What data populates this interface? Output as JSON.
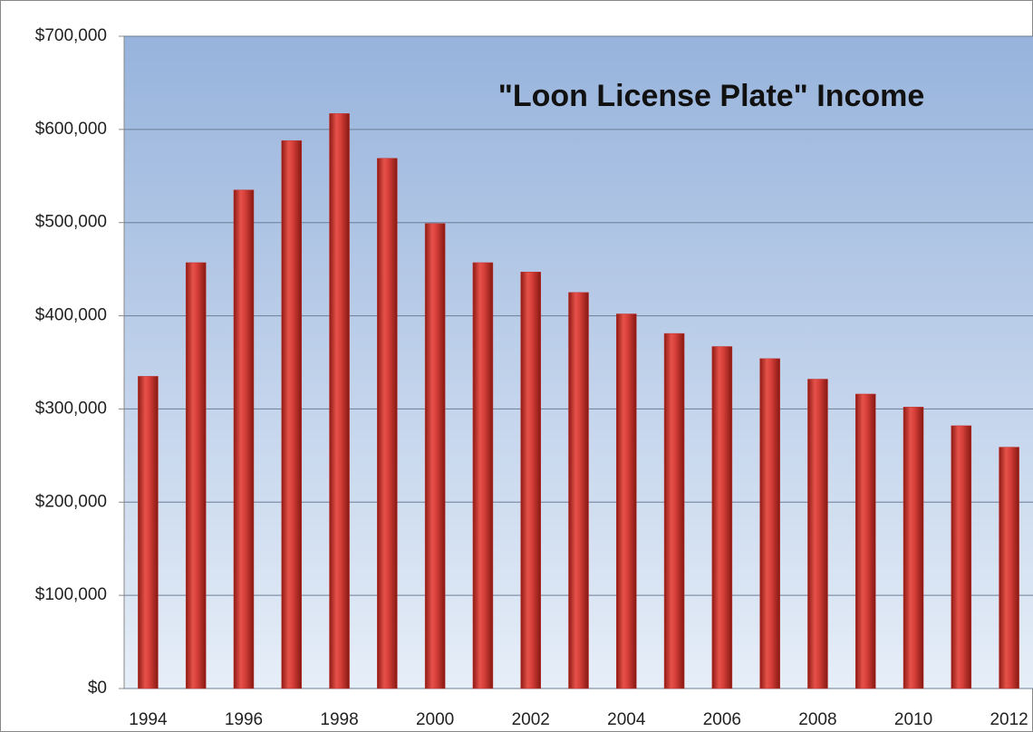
{
  "chart_data": {
    "type": "bar",
    "title": "\"Loon License Plate\" Income",
    "categories": [
      "1994",
      null,
      "1996",
      null,
      "1998",
      null,
      "2000",
      null,
      "2002",
      null,
      "2004",
      null,
      "2006",
      null,
      "2008",
      null,
      "2010",
      null,
      "2012"
    ],
    "values": [
      335000,
      457000,
      535000,
      588000,
      617000,
      569000,
      499000,
      457000,
      447000,
      425000,
      402000,
      381000,
      367000,
      354000,
      332000,
      316000,
      302000,
      282000,
      259000
    ],
    "color": "#c0302a",
    "ylim": [
      0,
      700000
    ],
    "yticks": [
      {
        "value": 0,
        "label": "$0"
      },
      {
        "value": 100000,
        "label": "$100,000"
      },
      {
        "value": 200000,
        "label": "$200,000"
      },
      {
        "value": 300000,
        "label": "$300,000"
      },
      {
        "value": 400000,
        "label": "$400,000"
      },
      {
        "value": 500000,
        "label": "$500,000"
      },
      {
        "value": 600000,
        "label": "$600,000"
      },
      {
        "value": 700000,
        "label": "$700,000"
      }
    ],
    "grid": true
  }
}
